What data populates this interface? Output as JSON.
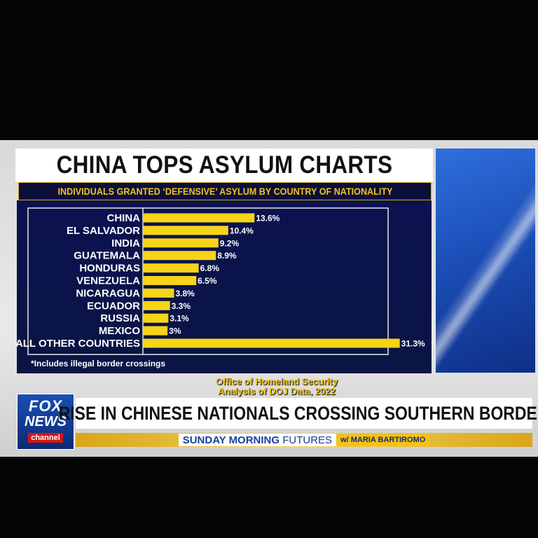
{
  "title": "CHINA TOPS ASYLUM CHARTS",
  "subtitle": "INDIVIDUALS GRANTED ‘DEFENSIVE’ ASYLUM BY COUNTRY OF NATIONALITY",
  "footnote": "*Includes illegal border crossings",
  "source_line1": "Office of Homeland Security",
  "source_line2": "Analysis of DOJ Data, 2022",
  "headline": "RISE IN CHINESE NATIONALS CROSSING SOUTHERN BORDER",
  "show": {
    "part1": "SUNDAY MORNING",
    "part2": "FUTURES",
    "host": "w/ MARIA BARTIROMO"
  },
  "logo": {
    "line1": "FOX",
    "line2": "NEWS",
    "line3": "channel"
  },
  "colors": {
    "bar": "#f6d418",
    "panel": "#0b1250",
    "title_bg": "#ffffff",
    "accent": "#f1c416"
  },
  "chart_data": {
    "type": "bar",
    "orientation": "horizontal",
    "categories": [
      "CHINA",
      "EL SALVADOR",
      "INDIA",
      "GUATEMALA",
      "HONDURAS",
      "VENEZUELA",
      "NICARAGUA",
      "ECUADOR",
      "RUSSIA",
      "MEXICO",
      "ALL OTHER COUNTRIES"
    ],
    "values": [
      13.6,
      10.4,
      9.2,
      8.9,
      6.8,
      6.5,
      3.8,
      3.3,
      3.1,
      3,
      31.3
    ],
    "value_labels": [
      "13.6%",
      "10.4%",
      "9.2%",
      "8.9%",
      "6.8%",
      "6.5%",
      "3.8%",
      "3.3%",
      "3.1%",
      "3%",
      "31.3%"
    ],
    "title": "CHINA TOPS ASYLUM CHARTS",
    "xlim": [
      0,
      35
    ]
  }
}
